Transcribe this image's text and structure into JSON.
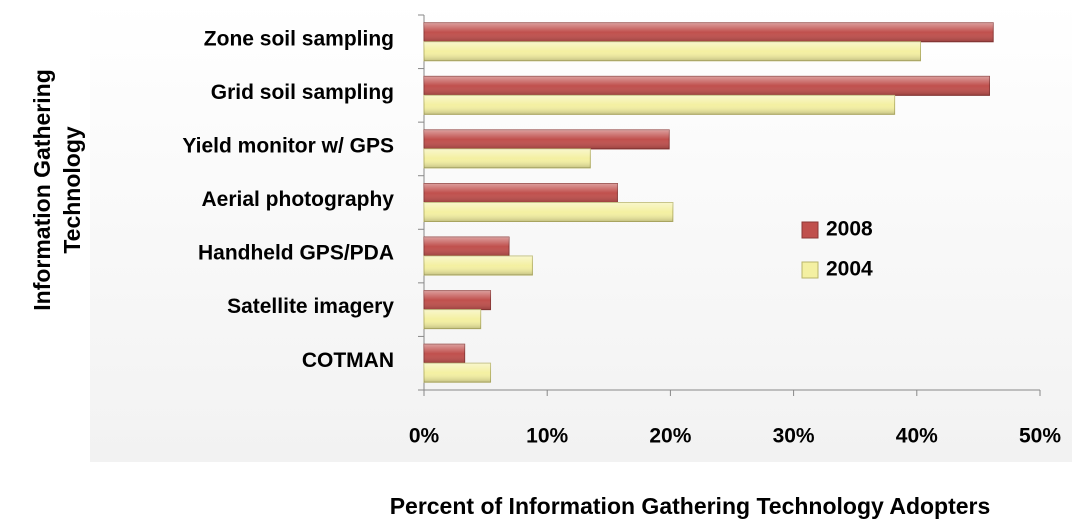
{
  "chart_data": {
    "type": "hbar",
    "x_label": "Percent of Information Gathering Technology Adopters",
    "y_label": [
      "Information Gathering",
      "Technology"
    ],
    "categories": [
      "Zone soil sampling",
      "Grid soil sampling",
      "Yield monitor w/ GPS",
      "Aerial photography",
      "Handheld GPS/PDA",
      "Satellite imagery",
      "COTMAN"
    ],
    "series": [
      {
        "name": "2008",
        "color": "#c0504d",
        "values": [
          46.2,
          45.9,
          19.9,
          15.7,
          6.9,
          5.4,
          3.3
        ]
      },
      {
        "name": "2004",
        "color": "#f4f0a2",
        "values": [
          40.3,
          38.2,
          13.5,
          20.2,
          8.8,
          4.6,
          5.4
        ]
      }
    ],
    "xlim": [
      0,
      50
    ],
    "xticks": [
      {
        "value": 0,
        "label": "0%"
      },
      {
        "value": 10,
        "label": "10%"
      },
      {
        "value": 20,
        "label": "20%"
      },
      {
        "value": 30,
        "label": "30%"
      },
      {
        "value": 40,
        "label": "40%"
      },
      {
        "value": 50,
        "label": "50%"
      }
    ],
    "grid": false,
    "legend": "right"
  }
}
